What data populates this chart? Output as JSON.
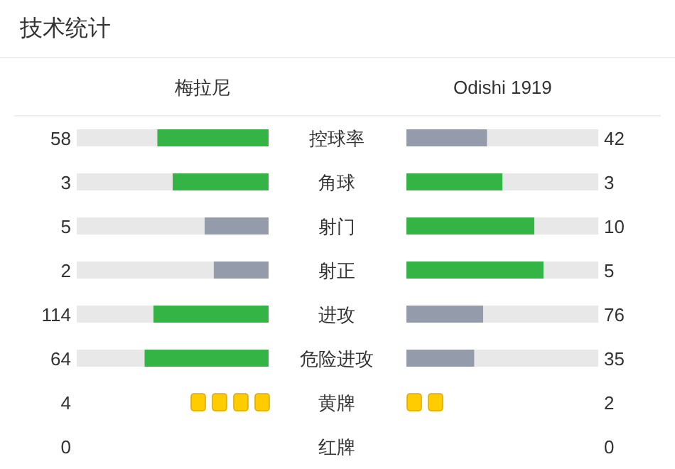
{
  "chart_data": {
    "type": "other",
    "title": "技术统计",
    "categories": [
      "控球率",
      "角球",
      "射门",
      "射正",
      "进攻",
      "危险进攻",
      "黄牌",
      "红牌"
    ],
    "data_labels": true,
    "series": [
      {
        "name": "梅拉尼",
        "values": [
          58,
          3,
          5,
          2,
          114,
          64,
          null,
          null
        ],
        "colors": [
          "#33b445",
          "#33b445",
          "#949cac",
          "#949cac",
          "#33b445",
          "#33b445",
          null,
          null
        ]
      },
      {
        "name": "Odishi 1919",
        "values": [
          42,
          3,
          10,
          5,
          76,
          35,
          null,
          null
        ],
        "colors": [
          "#949cac",
          "#33b445",
          "#33b445",
          "#33b445",
          "#949cac",
          "#949cac",
          null,
          null
        ]
      },
      {
        "marker": "square",
        "values": [
          null,
          null,
          null,
          null,
          null,
          null,
          4,
          0
        ],
        "colors": [
          null,
          null,
          null,
          null,
          null,
          null,
          "#ffcc00",
          "#e53935"
        ]
      },
      {
        "marker": "square",
        "values": [
          null,
          null,
          null,
          null,
          null,
          null,
          2,
          0
        ],
        "colors": [
          null,
          null,
          null,
          null,
          null,
          null,
          "#ffcc00",
          "#e53935"
        ]
      }
    ]
  }
}
